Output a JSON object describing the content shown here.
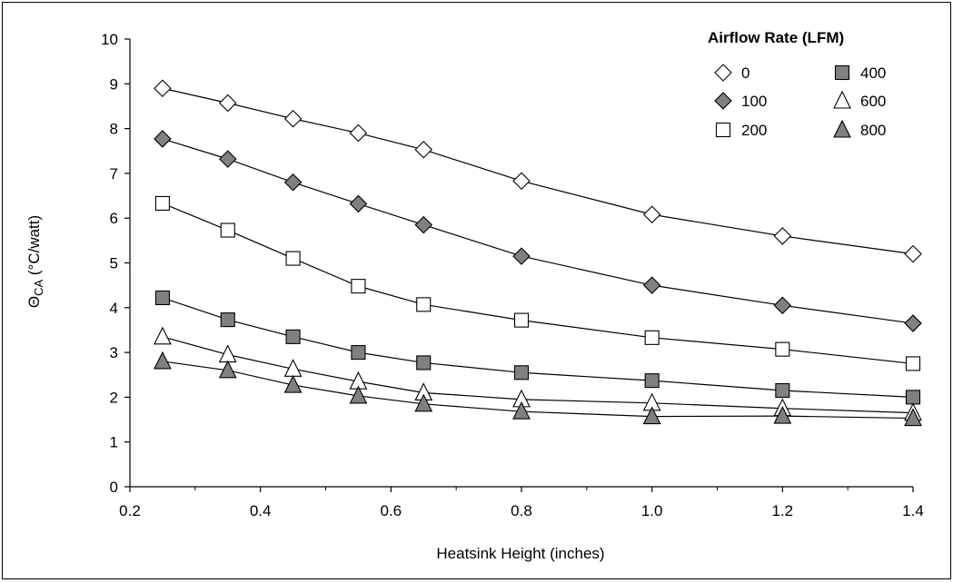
{
  "chart_data": {
    "type": "line",
    "xlabel": "Heatsink Height (inches)",
    "ylabel_main": "Θ",
    "ylabel_sub": "CA",
    "ylabel_rest": " (°C/watt)",
    "xlim": [
      0.2,
      1.4
    ],
    "ylim": [
      0,
      10
    ],
    "x_ticks": [
      "0.2",
      "0.4",
      "0.6",
      "0.8",
      "1.0",
      "1.2",
      "1.4"
    ],
    "y_ticks": [
      "0",
      "1",
      "2",
      "3",
      "4",
      "5",
      "6",
      "7",
      "8",
      "9",
      "10"
    ],
    "x": [
      0.25,
      0.35,
      0.45,
      0.55,
      0.65,
      0.8,
      1.0,
      1.2,
      1.4
    ],
    "grid": false,
    "legend": {
      "title": "Airflow Rate (LFM)",
      "placement": "top-right"
    },
    "series": [
      {
        "name": "0",
        "marker": "diamond",
        "fill": "#ffffff",
        "values": [
          8.9,
          8.57,
          8.22,
          7.9,
          7.53,
          6.83,
          6.08,
          5.6,
          5.2
        ]
      },
      {
        "name": "100",
        "marker": "diamond",
        "fill": "#808080",
        "values": [
          7.77,
          7.32,
          6.8,
          6.32,
          5.85,
          5.15,
          4.5,
          4.05,
          3.65
        ]
      },
      {
        "name": "200",
        "marker": "square",
        "fill": "#ffffff",
        "values": [
          6.33,
          5.73,
          5.1,
          4.48,
          4.07,
          3.72,
          3.33,
          3.07,
          2.75
        ]
      },
      {
        "name": "400",
        "marker": "square",
        "fill": "#808080",
        "values": [
          4.22,
          3.73,
          3.35,
          3.0,
          2.77,
          2.55,
          2.37,
          2.15,
          2.0
        ]
      },
      {
        "name": "600",
        "marker": "triangle",
        "fill": "#ffffff",
        "values": [
          3.35,
          2.95,
          2.63,
          2.35,
          2.1,
          1.95,
          1.87,
          1.75,
          1.65
        ]
      },
      {
        "name": "800",
        "marker": "triangle",
        "fill": "#808080",
        "values": [
          2.8,
          2.6,
          2.27,
          2.03,
          1.85,
          1.68,
          1.57,
          1.58,
          1.53
        ]
      }
    ]
  }
}
